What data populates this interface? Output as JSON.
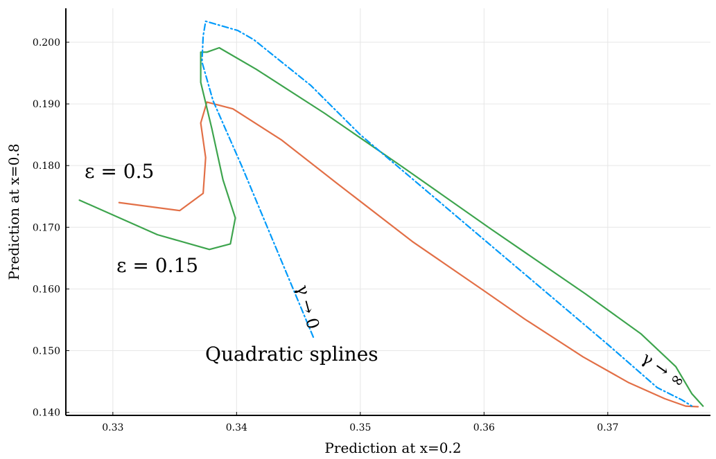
{
  "chart_data": {
    "type": "line",
    "title": "",
    "xlabel": "Prediction at x=0.2",
    "ylabel": "Prediction at x=0.8",
    "xlim": [
      0.3262,
      0.3783
    ],
    "ylim": [
      0.1395,
      0.2055
    ],
    "xticks": [
      0.33,
      0.34,
      0.35,
      0.36,
      0.37
    ],
    "yticks": [
      0.14,
      0.15,
      0.16,
      0.17,
      0.18,
      0.19,
      0.2
    ],
    "xtick_labels": [
      "0.33",
      "0.34",
      "0.35",
      "0.36",
      "0.37"
    ],
    "ytick_labels": [
      "0.140",
      "0.150",
      "0.160",
      "0.170",
      "0.180",
      "0.190",
      "0.200"
    ],
    "grid": true,
    "legend": "none",
    "series": [
      {
        "color": "#E26F46",
        "style": "solid",
        "x": [
          0.3305,
          0.3354,
          0.3373,
          0.3375,
          0.3371,
          0.3376,
          0.3397,
          0.3436,
          0.348,
          0.3542,
          0.36,
          0.3633,
          0.368,
          0.3717,
          0.3746,
          0.3763,
          0.3773
        ],
        "y": [
          0.174,
          0.1727,
          0.1755,
          0.1813,
          0.1869,
          0.1903,
          0.1892,
          0.1842,
          0.1773,
          0.1677,
          0.1597,
          0.1551,
          0.149,
          0.1448,
          0.1422,
          0.141,
          0.1409
        ]
      },
      {
        "color": "#3DA44D",
        "style": "solid",
        "x": [
          0.3273,
          0.3336,
          0.3378,
          0.3395,
          0.3399,
          0.3389,
          0.338,
          0.3371,
          0.3371,
          0.3376,
          0.3386,
          0.3416,
          0.3471,
          0.3534,
          0.3605,
          0.3682,
          0.3727,
          0.3755,
          0.3768,
          0.3777
        ],
        "y": [
          0.1744,
          0.1688,
          0.1664,
          0.1673,
          0.1715,
          0.1777,
          0.186,
          0.1935,
          0.1984,
          0.1984,
          0.1991,
          0.1956,
          0.1885,
          0.1798,
          0.1698,
          0.1592,
          0.1527,
          0.1474,
          0.143,
          0.141
        ]
      },
      {
        "color": "#009AFA",
        "style": "dashdot",
        "x": [
          0.3462,
          0.3404,
          0.3381,
          0.3372,
          0.3373,
          0.3375,
          0.3401,
          0.3414,
          0.346,
          0.35,
          0.36,
          0.37,
          0.374,
          0.376,
          0.3768
        ],
        "y": [
          0.1522,
          0.18,
          0.1905,
          0.1968,
          0.201,
          0.2034,
          0.2019,
          0.2004,
          0.193,
          0.185,
          0.168,
          0.151,
          0.144,
          0.142,
          0.141
        ]
      }
    ],
    "annotations": [
      {
        "text": "ε = 0.5",
        "x": 0.3294,
        "y": 0.179
      },
      {
        "text": "ε = 0.15",
        "x": 0.3331,
        "y": 0.1635
      },
      {
        "text": "γ → 0",
        "x": 0.3449,
        "y": 0.1563
      },
      {
        "text": "Quadratic splines",
        "x": 0.3427,
        "y": 0.1488
      },
      {
        "text": "γ → ∞",
        "x": 0.3756,
        "y": 0.1443
      }
    ]
  }
}
